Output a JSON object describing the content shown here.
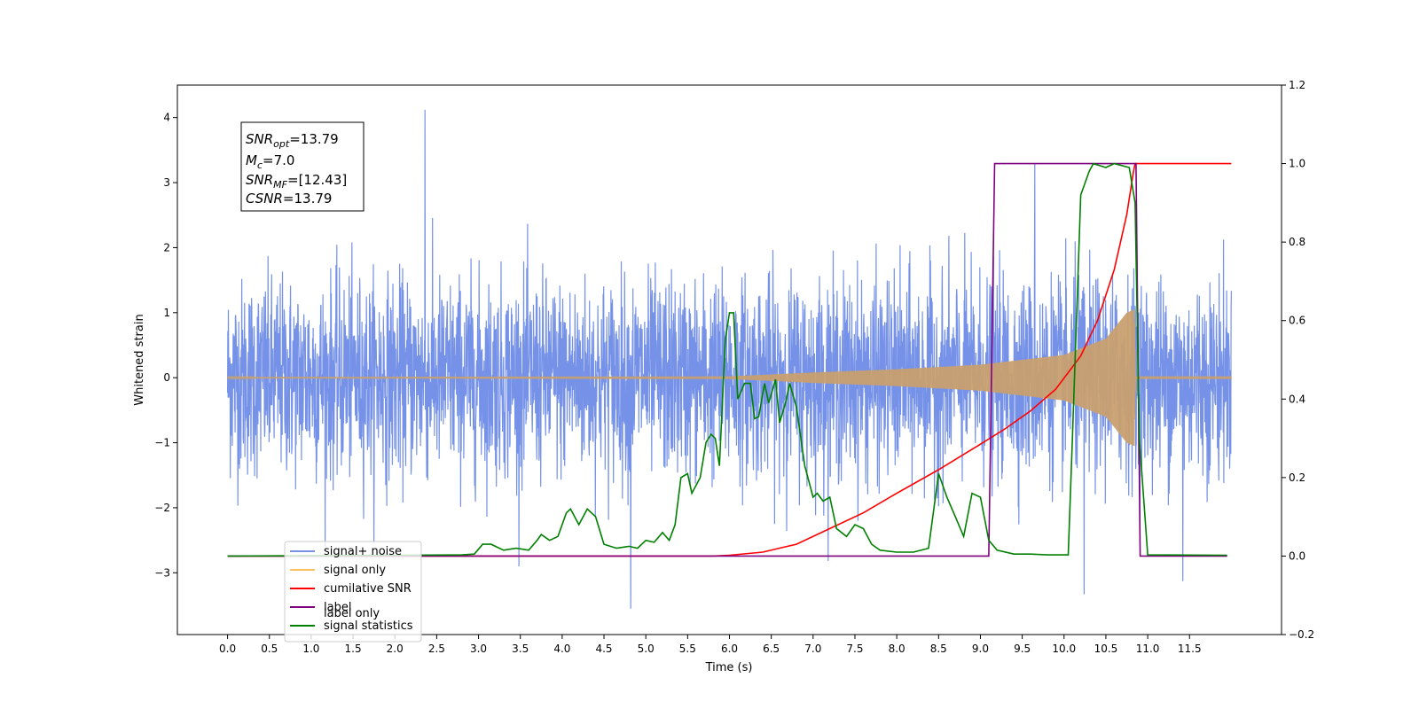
{
  "chart_data": {
    "type": "line",
    "xlabel": "Time (s)",
    "ylabel": "Whitened strain",
    "xlim": [
      -0.6,
      12.6
    ],
    "ylim": [
      -3.95,
      4.5
    ],
    "ylim_right": [
      -0.2,
      1.2
    ],
    "x_ticks": [
      "0.0",
      "0.5",
      "1.0",
      "1.5",
      "2.0",
      "2.5",
      "3.0",
      "3.5",
      "4.0",
      "4.5",
      "5.0",
      "5.5",
      "6.0",
      "6.5",
      "7.0",
      "7.5",
      "8.0",
      "8.5",
      "9.0",
      "9.5",
      "10.0",
      "10.5",
      "11.0",
      "11.5"
    ],
    "y_ticks_left": [
      "4",
      "3",
      "2",
      "1",
      "0",
      "−1",
      "−2",
      "−3"
    ],
    "y_ticks_right": [
      "1.2",
      "1.0",
      "0.8",
      "0.6",
      "0.4",
      "0.2",
      "0.0",
      "−0.2"
    ],
    "grid": false,
    "annotation": {
      "snr_opt": "=13.79",
      "mc": "=7.0",
      "snr_mf": "=[12.43]",
      "csnr": "=13.79"
    },
    "legend": {
      "placement": "lower-left",
      "entries": [
        {
          "label": "signal+ noise",
          "color": "#7592e8"
        },
        {
          "label": "signal only",
          "color": "#ffc060"
        },
        {
          "label": "cumilative SNR",
          "color": "#ff0000"
        },
        {
          "label": "label",
          "color": "#800080"
        },
        {
          "label": "signal statistics",
          "color": "#008000"
        }
      ],
      "hidden_labels": [
        "label only"
      ]
    },
    "series": [
      {
        "name": "signal+ noise",
        "axis": "left",
        "color": "#7592e8",
        "kind": "noise",
        "x_range": [
          0,
          12
        ],
        "amplitude_typical": 2.0,
        "notable_peaks": [
          [
            2.36,
            4.12
          ],
          [
            9.65,
            3.3
          ],
          [
            4.82,
            -3.55
          ],
          [
            10.24,
            -3.33
          ],
          [
            11.42,
            -3.13
          ]
        ]
      },
      {
        "name": "signal only",
        "axis": "left",
        "color": "#c8a070",
        "kind": "chirp",
        "x_range": [
          0,
          12
        ],
        "envelope": [
          [
            0,
            0.01
          ],
          [
            6.0,
            0.02
          ],
          [
            7.0,
            0.08
          ],
          [
            8.0,
            0.13
          ],
          [
            9.0,
            0.2
          ],
          [
            10.0,
            0.35
          ],
          [
            10.5,
            0.6
          ],
          [
            10.75,
            1.0
          ],
          [
            10.84,
            1.05
          ],
          [
            10.86,
            0.02
          ],
          [
            12.0,
            0.02
          ]
        ]
      },
      {
        "name": "cumilative SNR",
        "axis": "right",
        "color": "#ff0000",
        "points": [
          [
            0,
            0.0
          ],
          [
            5.8,
            0.0
          ],
          [
            6.0,
            0.002
          ],
          [
            6.4,
            0.01
          ],
          [
            6.8,
            0.03
          ],
          [
            7.2,
            0.07
          ],
          [
            7.6,
            0.11
          ],
          [
            8.0,
            0.16
          ],
          [
            8.5,
            0.22
          ],
          [
            9.0,
            0.285
          ],
          [
            9.3,
            0.325
          ],
          [
            9.6,
            0.37
          ],
          [
            9.9,
            0.425
          ],
          [
            10.2,
            0.51
          ],
          [
            10.4,
            0.6
          ],
          [
            10.6,
            0.73
          ],
          [
            10.75,
            0.87
          ],
          [
            10.83,
            0.98
          ],
          [
            10.85,
            1.0
          ],
          [
            12.0,
            1.0
          ]
        ]
      },
      {
        "name": "label",
        "axis": "right",
        "color": "#800080",
        "points": [
          [
            0,
            0.0
          ],
          [
            9.1,
            0.0
          ],
          [
            9.17,
            1.0
          ],
          [
            10.86,
            1.0
          ],
          [
            10.91,
            0.0
          ],
          [
            11.95,
            0.0
          ]
        ]
      },
      {
        "name": "signal statistics",
        "axis": "right",
        "color": "#008000",
        "points": [
          [
            0,
            0.0
          ],
          [
            2.8,
            0.003
          ],
          [
            2.95,
            0.005
          ],
          [
            3.05,
            0.03
          ],
          [
            3.15,
            0.03
          ],
          [
            3.3,
            0.015
          ],
          [
            3.45,
            0.02
          ],
          [
            3.6,
            0.015
          ],
          [
            3.7,
            0.04
          ],
          [
            3.75,
            0.055
          ],
          [
            3.85,
            0.04
          ],
          [
            3.95,
            0.05
          ],
          [
            4.05,
            0.11
          ],
          [
            4.1,
            0.12
          ],
          [
            4.2,
            0.08
          ],
          [
            4.3,
            0.12
          ],
          [
            4.4,
            0.1
          ],
          [
            4.5,
            0.03
          ],
          [
            4.65,
            0.02
          ],
          [
            4.8,
            0.025
          ],
          [
            4.9,
            0.02
          ],
          [
            5.0,
            0.04
          ],
          [
            5.1,
            0.035
          ],
          [
            5.2,
            0.06
          ],
          [
            5.28,
            0.04
          ],
          [
            5.35,
            0.08
          ],
          [
            5.42,
            0.2
          ],
          [
            5.5,
            0.21
          ],
          [
            5.55,
            0.16
          ],
          [
            5.65,
            0.2
          ],
          [
            5.72,
            0.29
          ],
          [
            5.78,
            0.31
          ],
          [
            5.83,
            0.3
          ],
          [
            5.88,
            0.23
          ],
          [
            5.95,
            0.55
          ],
          [
            6.0,
            0.62
          ],
          [
            6.05,
            0.62
          ],
          [
            6.1,
            0.4
          ],
          [
            6.18,
            0.44
          ],
          [
            6.25,
            0.44
          ],
          [
            6.3,
            0.35
          ],
          [
            6.35,
            0.355
          ],
          [
            6.42,
            0.44
          ],
          [
            6.47,
            0.39
          ],
          [
            6.55,
            0.45
          ],
          [
            6.6,
            0.34
          ],
          [
            6.67,
            0.39
          ],
          [
            6.72,
            0.44
          ],
          [
            6.8,
            0.38
          ],
          [
            6.9,
            0.23
          ],
          [
            7.0,
            0.15
          ],
          [
            7.05,
            0.16
          ],
          [
            7.12,
            0.14
          ],
          [
            7.2,
            0.15
          ],
          [
            7.28,
            0.07
          ],
          [
            7.4,
            0.05
          ],
          [
            7.5,
            0.08
          ],
          [
            7.6,
            0.07
          ],
          [
            7.7,
            0.03
          ],
          [
            7.8,
            0.015
          ],
          [
            8.0,
            0.01
          ],
          [
            8.2,
            0.01
          ],
          [
            8.38,
            0.02
          ],
          [
            8.5,
            0.21
          ],
          [
            8.6,
            0.15
          ],
          [
            8.7,
            0.1
          ],
          [
            8.8,
            0.05
          ],
          [
            8.9,
            0.16
          ],
          [
            9.0,
            0.15
          ],
          [
            9.1,
            0.04
          ],
          [
            9.2,
            0.015
          ],
          [
            9.4,
            0.005
          ],
          [
            9.6,
            0.005
          ],
          [
            9.8,
            0.003
          ],
          [
            10.05,
            0.003
          ],
          [
            10.1,
            0.3
          ],
          [
            10.2,
            0.92
          ],
          [
            10.3,
            0.98
          ],
          [
            10.35,
            1.0
          ],
          [
            10.5,
            0.99
          ],
          [
            10.6,
            1.0
          ],
          [
            10.78,
            0.99
          ],
          [
            10.85,
            0.9
          ],
          [
            10.9,
            0.3
          ],
          [
            11.0,
            0.003
          ],
          [
            11.95,
            0.002
          ]
        ]
      }
    ]
  }
}
